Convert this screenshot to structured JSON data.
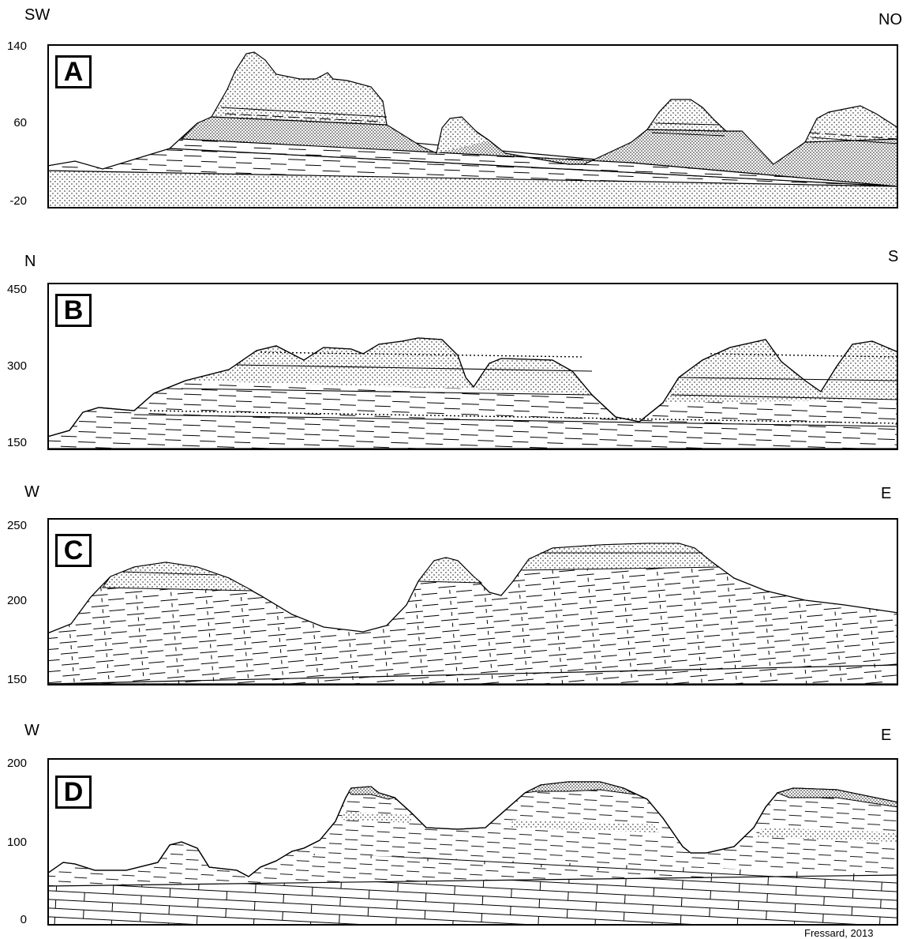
{
  "panels": [
    {
      "letter": "A",
      "dir_left": "SW",
      "dir_right": "NO",
      "ticks": [
        "140",
        "60",
        "-20"
      ]
    },
    {
      "letter": "B",
      "dir_left": "N",
      "dir_right": "S",
      "ticks": [
        "450",
        "300",
        "150"
      ]
    },
    {
      "letter": "C",
      "dir_left": "W",
      "dir_right": "E",
      "ticks": [
        "250",
        "200",
        "150"
      ]
    },
    {
      "letter": "D",
      "dir_left": "W",
      "dir_right": "E",
      "ticks": [
        "200",
        "100",
        "0"
      ]
    }
  ],
  "credit": "Fressard, 2013",
  "colors": {
    "ink": "#000000",
    "paper": "#ffffff",
    "stipple": "#555555"
  }
}
